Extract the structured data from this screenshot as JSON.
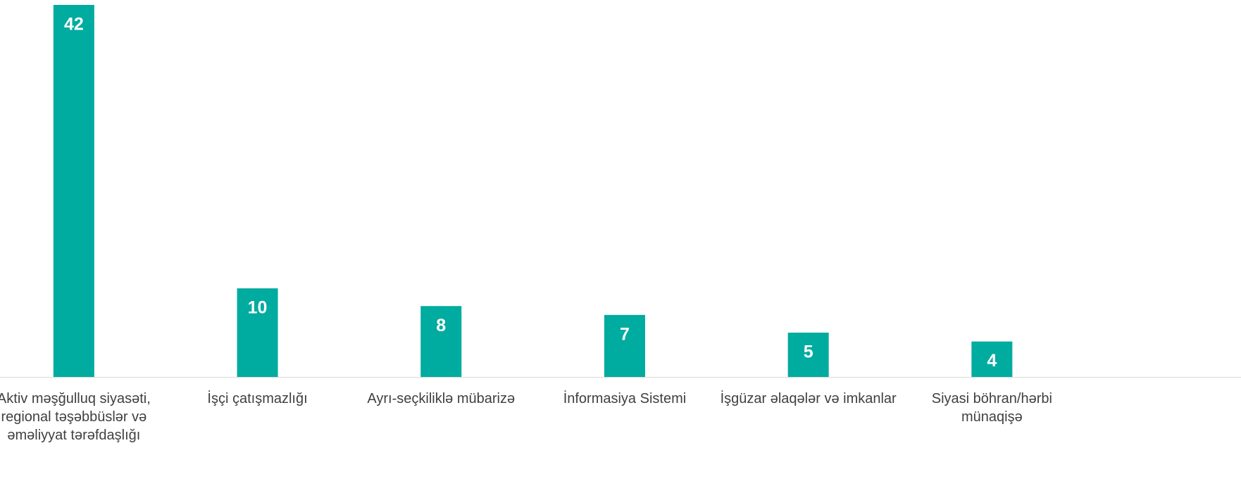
{
  "chart_data": {
    "type": "bar",
    "categories": [
      "Aktiv məşğulluq siyasəti, regional təşəbbüslər və əməliyyat tərəfdaşlığı",
      "İşçi çatışmazlığı",
      "Ayrı-seçkiliklə mübarizə",
      "İnformasiya Sistemi",
      "İşgüzar əlaqələr və imkanlar",
      "Siyasi böhran/hərbi münaqişə"
    ],
    "values": [
      42,
      10,
      8,
      7,
      5,
      4
    ],
    "color": "#00aba0"
  }
}
